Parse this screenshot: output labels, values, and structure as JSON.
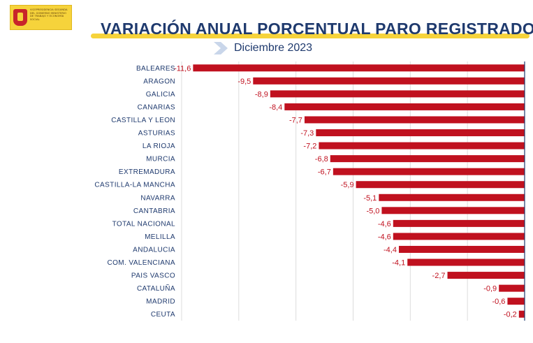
{
  "header": {
    "logo_text": "VICEPRESIDENCIA SEGUNDA DEL GOBIERNO MINISTERIO DE TRABAJO Y ECONOMÍA SOCIAL",
    "title": "VARIACIÓN ANUAL PORCENTUAL PARO REGISTRADO",
    "subtitle": "Diciembre 2023"
  },
  "colors": {
    "bar": "#c0111f",
    "title": "#1f3a6e",
    "accent": "#f6d33b",
    "chevron": "#c9d6ea"
  },
  "chart_data": {
    "type": "bar",
    "orientation": "horizontal",
    "title": "VARIACIÓN ANUAL PORCENTUAL PARO REGISTRADO",
    "subtitle": "Diciembre 2023",
    "xlabel": "",
    "ylabel": "",
    "xlim": [
      -12,
      0
    ],
    "grid": true,
    "categories": [
      "BALEARES",
      "ARAGON",
      "GALICIA",
      "CANARIAS",
      "CASTILLA Y LEON",
      "ASTURIAS",
      "LA RIOJA",
      "MURCIA",
      "EXTREMADURA",
      "CASTILLA-LA MANCHA",
      "NAVARRA",
      "CANTABRIA",
      "TOTAL NACIONAL",
      "MELILLA",
      "ANDALUCIA",
      "COM. VALENCIANA",
      "PAIS VASCO",
      "CATALUÑA",
      "MADRID",
      "CEUTA"
    ],
    "values": [
      -11.6,
      -9.5,
      -8.9,
      -8.4,
      -7.7,
      -7.3,
      -7.2,
      -6.8,
      -6.7,
      -5.9,
      -5.1,
      -5.0,
      -4.6,
      -4.6,
      -4.4,
      -4.1,
      -2.7,
      -0.9,
      -0.6,
      -0.2
    ],
    "value_labels": [
      "-11,6",
      "-9,5",
      "-8,9",
      "-8,4",
      "-7,7",
      "-7,3",
      "-7,2",
      "-6,8",
      "-6,7",
      "-5,9",
      "-5,1",
      "-5,0",
      "-4,6",
      "-4,6",
      "-4,4",
      "-4,1",
      "-2,7",
      "-0,9",
      "-0,6",
      "-0,2"
    ]
  }
}
